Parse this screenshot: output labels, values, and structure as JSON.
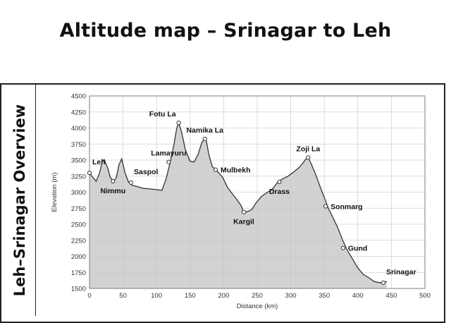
{
  "header": {
    "title": "Altitude map – Srinagar to Leh"
  },
  "side_title": "Leh–Srinagar Overview",
  "chart_data": {
    "type": "area",
    "xlabel": "Distance (km)",
    "ylabel": "Elevation (m)",
    "xlim": [
      0,
      500
    ],
    "ylim": [
      1500,
      4500
    ],
    "xticks": [
      0,
      50,
      100,
      150,
      200,
      250,
      300,
      350,
      400,
      450,
      500
    ],
    "yticks": [
      1500,
      1750,
      2000,
      2250,
      2500,
      2750,
      3000,
      3250,
      3500,
      3750,
      4000,
      4250,
      4500
    ],
    "grid": true,
    "profile": [
      [
        0,
        3300
      ],
      [
        5,
        3230
      ],
      [
        10,
        3170
      ],
      [
        15,
        3300
      ],
      [
        19,
        3480
      ],
      [
        22,
        3510
      ],
      [
        27,
        3380
      ],
      [
        31,
        3230
      ],
      [
        36,
        3170
      ],
      [
        40,
        3230
      ],
      [
        44,
        3430
      ],
      [
        48,
        3520
      ],
      [
        53,
        3300
      ],
      [
        58,
        3160
      ],
      [
        63,
        3110
      ],
      [
        70,
        3090
      ],
      [
        80,
        3060
      ],
      [
        90,
        3050
      ],
      [
        100,
        3040
      ],
      [
        108,
        3030
      ],
      [
        114,
        3200
      ],
      [
        120,
        3450
      ],
      [
        126,
        3750
      ],
      [
        130,
        4000
      ],
      [
        133,
        4080
      ],
      [
        137,
        3950
      ],
      [
        143,
        3660
      ],
      [
        150,
        3480
      ],
      [
        156,
        3470
      ],
      [
        162,
        3590
      ],
      [
        167,
        3760
      ],
      [
        171,
        3830
      ],
      [
        174,
        3810
      ],
      [
        178,
        3580
      ],
      [
        183,
        3400
      ],
      [
        190,
        3330
      ],
      [
        198,
        3240
      ],
      [
        206,
        3070
      ],
      [
        214,
        2960
      ],
      [
        220,
        2880
      ],
      [
        226,
        2790
      ],
      [
        230,
        2680
      ],
      [
        236,
        2700
      ],
      [
        242,
        2730
      ],
      [
        248,
        2830
      ],
      [
        256,
        2930
      ],
      [
        264,
        2990
      ],
      [
        272,
        3040
      ],
      [
        280,
        3150
      ],
      [
        288,
        3210
      ],
      [
        296,
        3250
      ],
      [
        305,
        3320
      ],
      [
        312,
        3380
      ],
      [
        318,
        3450
      ],
      [
        322,
        3510
      ],
      [
        326,
        3540
      ],
      [
        331,
        3430
      ],
      [
        338,
        3250
      ],
      [
        345,
        3050
      ],
      [
        350,
        2920
      ],
      [
        356,
        2750
      ],
      [
        363,
        2600
      ],
      [
        370,
        2450
      ],
      [
        377,
        2260
      ],
      [
        384,
        2100
      ],
      [
        392,
        1960
      ],
      [
        400,
        1820
      ],
      [
        408,
        1720
      ],
      [
        416,
        1670
      ],
      [
        424,
        1610
      ],
      [
        432,
        1590
      ],
      [
        438,
        1590
      ],
      [
        443,
        1610
      ]
    ],
    "places": [
      {
        "name": "Leh",
        "x": 0,
        "y": 3300,
        "label_pos": "above-right"
      },
      {
        "name": "Nimmu",
        "x": 35,
        "y": 3170,
        "label_pos": "below"
      },
      {
        "name": "Lamayuru",
        "x": 118,
        "y": 3470,
        "label_pos": "above"
      },
      {
        "name": "Saspol",
        "x": 62,
        "y": 3150,
        "label_pos": "above-right"
      },
      {
        "name": "Fotu La",
        "x": 133,
        "y": 4080,
        "label_pos": "above-left"
      },
      {
        "name": "Namika La",
        "x": 172,
        "y": 3830,
        "label_pos": "above"
      },
      {
        "name": "Mulbekh",
        "x": 188,
        "y": 3350,
        "label_pos": "right"
      },
      {
        "name": "Kargil",
        "x": 230,
        "y": 2690,
        "label_pos": "below"
      },
      {
        "name": "Drass",
        "x": 283,
        "y": 3160,
        "label_pos": "below"
      },
      {
        "name": "Zoji La",
        "x": 326,
        "y": 3540,
        "label_pos": "above"
      },
      {
        "name": "Sonmarg",
        "x": 352,
        "y": 2780,
        "label_pos": "right"
      },
      {
        "name": "Gund",
        "x": 378,
        "y": 2130,
        "label_pos": "right"
      },
      {
        "name": "Srinagar",
        "x": 438,
        "y": 1590,
        "label_pos": "above-right"
      }
    ],
    "colors": {
      "fill": "#d2d2d2",
      "grid": "#c4c4c4",
      "line": "#333333"
    }
  }
}
